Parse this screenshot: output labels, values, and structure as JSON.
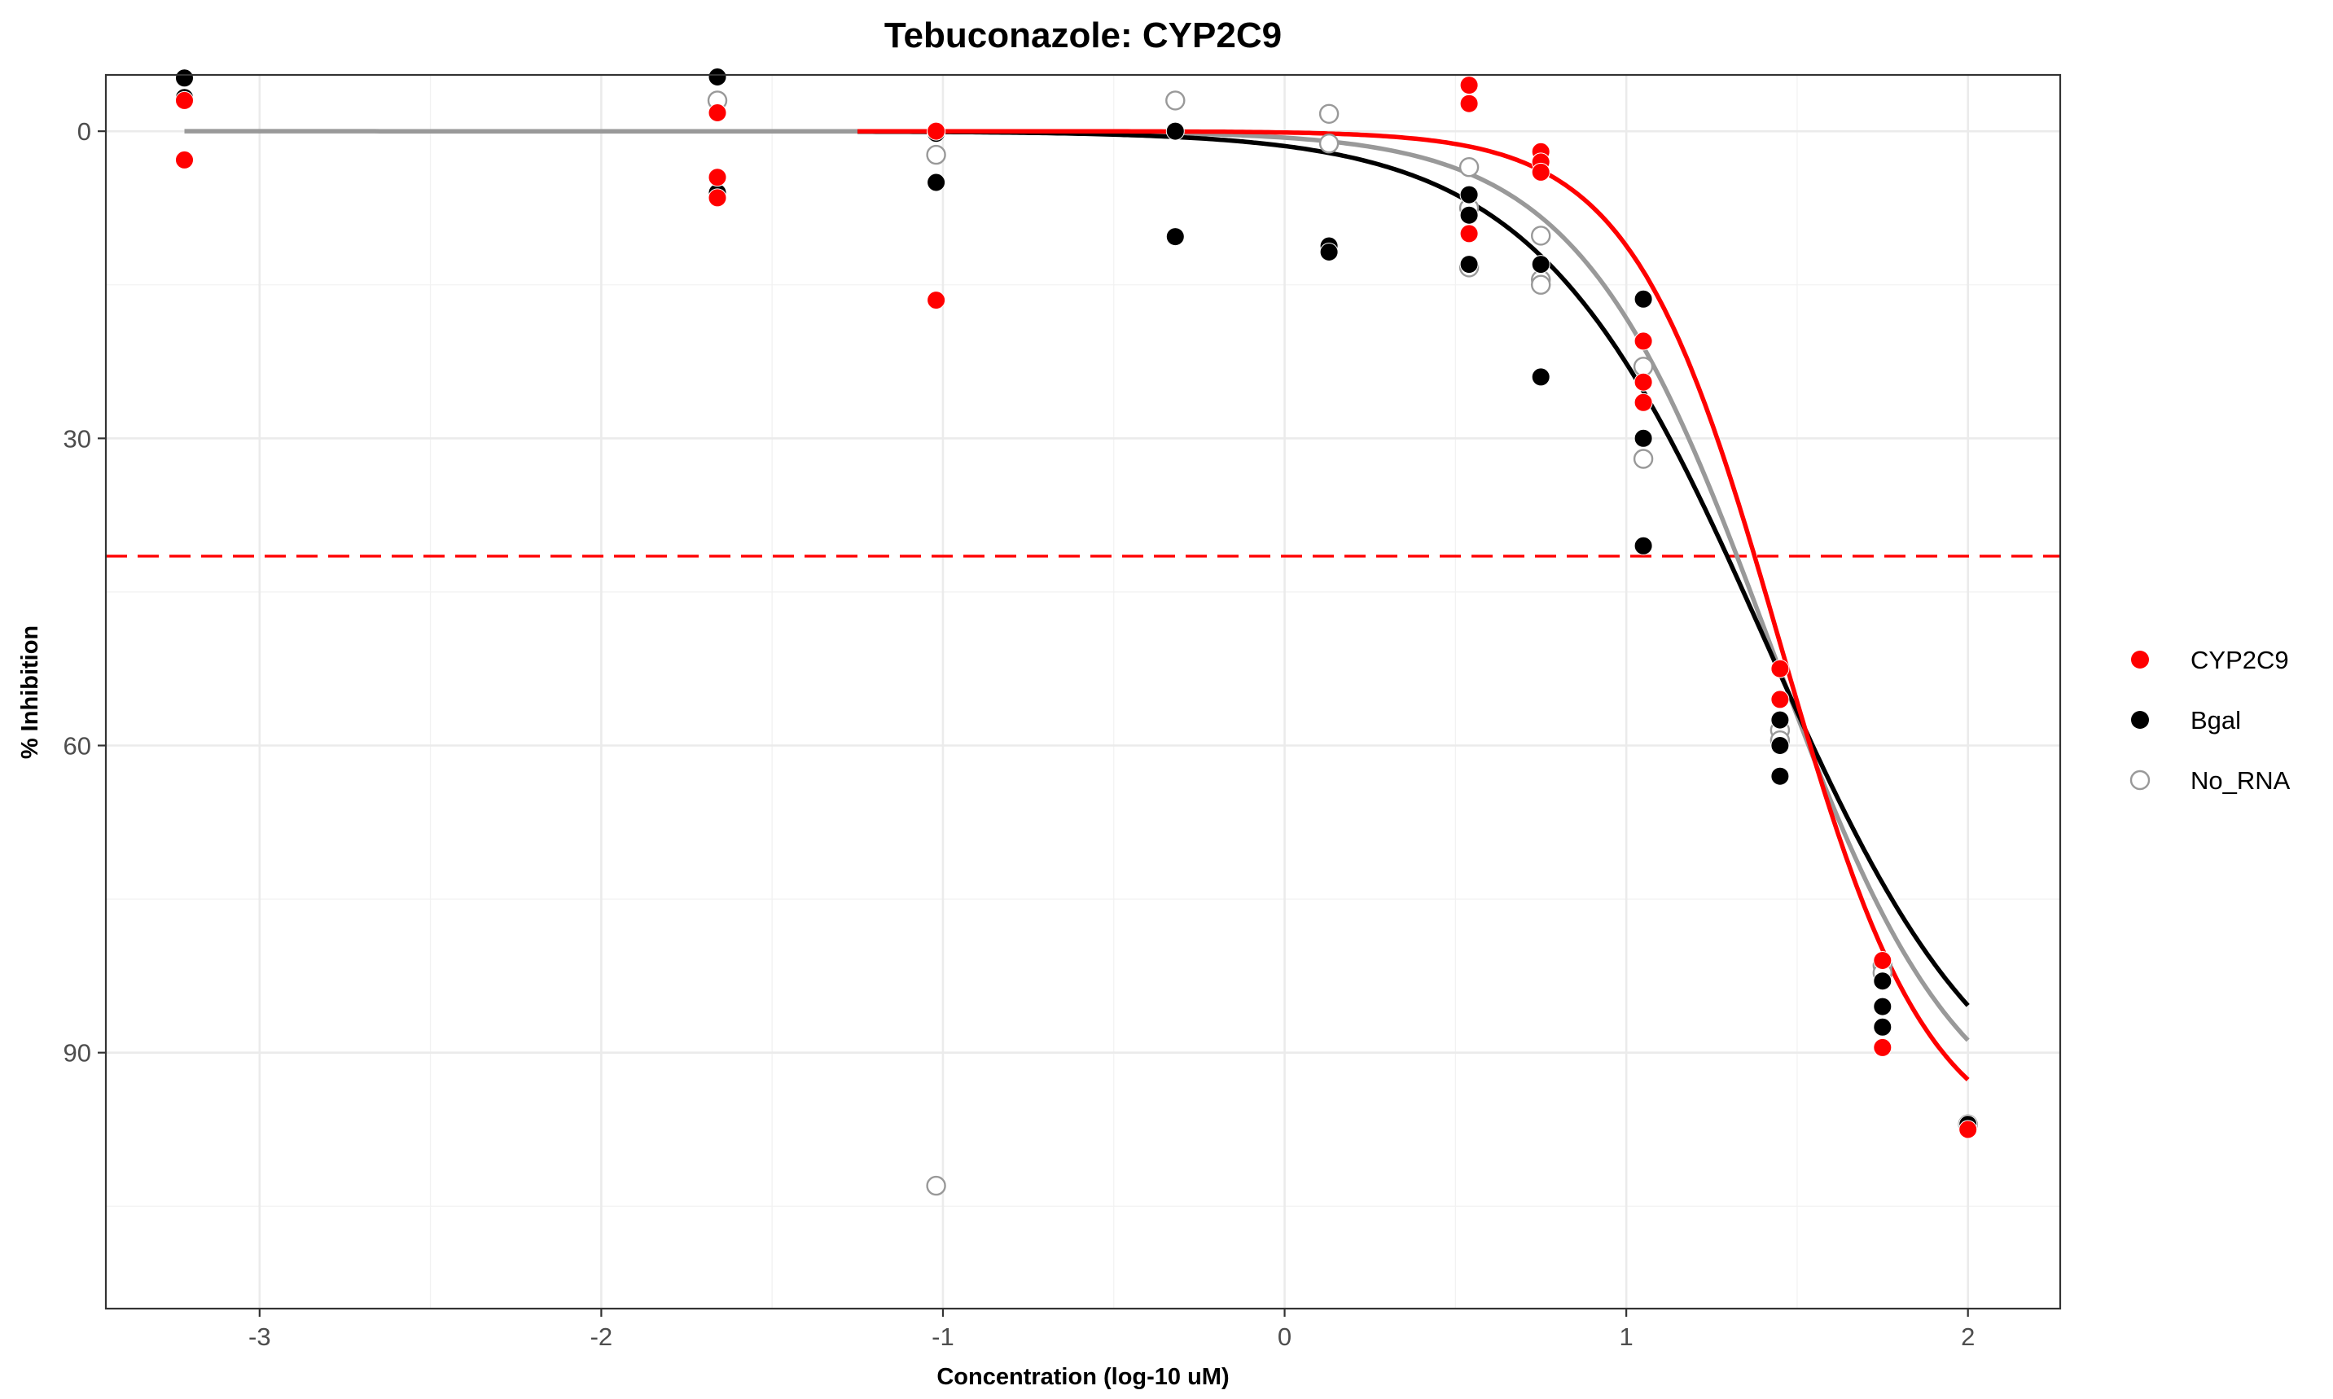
{
  "chart_data": {
    "type": "scatter",
    "title": "Tebuconazole: CYP2C9",
    "xlabel": "Concentration (log-10 uM)",
    "ylabel": "% Inhibition",
    "xlim": [
      -3.45,
      2.27
    ],
    "ylim": [
      115,
      -5.5
    ],
    "y_reversed": true,
    "x_ticks": [
      -3,
      -2,
      -1,
      0,
      1,
      2
    ],
    "x_tick_labels": [
      "-3",
      "-2",
      "-1",
      "0",
      "1",
      "2"
    ],
    "y_ticks": [
      0,
      30,
      60,
      90
    ],
    "y_tick_labels": [
      "0",
      "30",
      "60",
      "90"
    ],
    "grid": true,
    "legend_position": "right",
    "reference_line": {
      "y": 41.5,
      "color": "#ff0000",
      "style": "dashed"
    },
    "series": [
      {
        "name": "CYP2C9",
        "color": "#ff0000",
        "marker": "filled",
        "points": [
          [
            -3.22,
            -3
          ],
          [
            -3.22,
            2.8
          ],
          [
            -1.66,
            -1.8
          ],
          [
            -1.66,
            4.5
          ],
          [
            -1.66,
            6.5
          ],
          [
            -1.02,
            0
          ],
          [
            -1.02,
            16.5
          ],
          [
            0.54,
            -4.5
          ],
          [
            0.54,
            -2.7
          ],
          [
            0.54,
            10
          ],
          [
            0.75,
            2
          ],
          [
            0.75,
            3
          ],
          [
            0.75,
            4
          ],
          [
            1.05,
            20.5
          ],
          [
            1.05,
            24.5
          ],
          [
            1.05,
            26.5
          ],
          [
            1.45,
            52.5
          ],
          [
            1.45,
            55.5
          ],
          [
            1.75,
            81
          ],
          [
            1.75,
            89.5
          ],
          [
            2.0,
            97.5
          ]
        ],
        "curve": {
          "bottom": 0,
          "top": 100,
          "log_ic50": 1.45,
          "hill": 2.0,
          "x_start": -1.25
        }
      },
      {
        "name": "Bgal",
        "color": "#000000",
        "marker": "filled",
        "points": [
          [
            -3.22,
            -5.2
          ],
          [
            -3.22,
            -3.3
          ],
          [
            -1.66,
            -5.3
          ],
          [
            -1.66,
            6
          ],
          [
            -1.02,
            0.2
          ],
          [
            -1.02,
            5
          ],
          [
            -0.32,
            0
          ],
          [
            -0.32,
            10.3
          ],
          [
            0.13,
            11.2
          ],
          [
            0.13,
            11.8
          ],
          [
            0.54,
            6.2
          ],
          [
            0.54,
            8.2
          ],
          [
            0.54,
            13
          ],
          [
            0.75,
            13
          ],
          [
            0.75,
            24
          ],
          [
            1.05,
            16.4
          ],
          [
            1.05,
            30
          ],
          [
            1.05,
            40.5
          ],
          [
            1.45,
            57.5
          ],
          [
            1.45,
            60
          ],
          [
            1.45,
            63
          ],
          [
            1.75,
            83
          ],
          [
            1.75,
            85.5
          ],
          [
            1.75,
            87.5
          ],
          [
            2.0,
            97
          ]
        ],
        "curve": {
          "bottom": 0,
          "top": 100,
          "log_ic50": 1.41,
          "hill": 1.3,
          "x_start": -1.25
        }
      },
      {
        "name": "No_RNA",
        "color": "#999999",
        "marker": "open",
        "points": [
          [
            -1.66,
            -3
          ],
          [
            -1.02,
            2.3
          ],
          [
            -1.02,
            103
          ],
          [
            -0.32,
            -3
          ],
          [
            0.13,
            -1.7
          ],
          [
            0.13,
            1.2
          ],
          [
            0.54,
            3.5
          ],
          [
            0.54,
            7.5
          ],
          [
            0.54,
            13.3
          ],
          [
            0.75,
            10.2
          ],
          [
            0.75,
            14.5
          ],
          [
            0.75,
            15
          ],
          [
            1.05,
            23
          ],
          [
            1.05,
            32
          ],
          [
            1.45,
            58.5
          ],
          [
            1.45,
            59.5
          ],
          [
            1.75,
            81.5
          ],
          [
            1.75,
            82.2
          ],
          [
            2.0,
            97
          ]
        ],
        "curve": {
          "bottom": 0,
          "top": 100,
          "log_ic50": 1.42,
          "hill": 1.55,
          "x_start": -3.22
        }
      }
    ]
  }
}
